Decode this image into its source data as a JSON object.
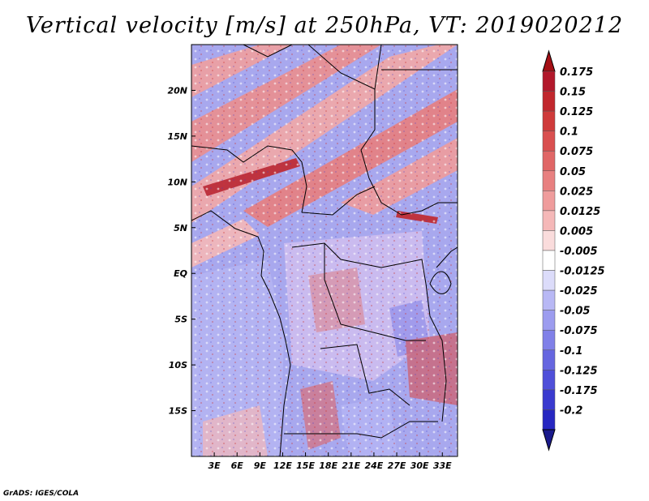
{
  "title": "Vertical velocity [m/s] at 250hPa, VT: 2019020212",
  "credit": "GrADS: IGES/COLA",
  "map": {
    "variable": "Vertical velocity",
    "units": "m/s",
    "level": "250hPa",
    "valid_time": "2019020212",
    "lon_range": [
      0,
      35
    ],
    "lat_range": [
      -20,
      25
    ],
    "lat_ticks": [
      {
        "value": 20,
        "label": "20N"
      },
      {
        "value": 15,
        "label": "15N"
      },
      {
        "value": 10,
        "label": "10N"
      },
      {
        "value": 5,
        "label": "5N"
      },
      {
        "value": 0,
        "label": "EQ"
      },
      {
        "value": -5,
        "label": "5S"
      },
      {
        "value": -10,
        "label": "10S"
      },
      {
        "value": -15,
        "label": "15S"
      }
    ],
    "lon_ticks": [
      {
        "value": 3,
        "label": "3E"
      },
      {
        "value": 6,
        "label": "6E"
      },
      {
        "value": 9,
        "label": "9E"
      },
      {
        "value": 12,
        "label": "12E"
      },
      {
        "value": 15,
        "label": "15E"
      },
      {
        "value": 18,
        "label": "18E"
      },
      {
        "value": 21,
        "label": "21E"
      },
      {
        "value": 24,
        "label": "24E"
      },
      {
        "value": 27,
        "label": "27E"
      },
      {
        "value": 30,
        "label": "30E"
      },
      {
        "value": 33,
        "label": "33E"
      }
    ]
  },
  "colorbar": {
    "labels": [
      "0.175",
      "0.15",
      "0.125",
      "0.1",
      "0.075",
      "0.05",
      "0.025",
      "0.0125",
      "0.005",
      "-0.005",
      "-0.0125",
      "-0.025",
      "-0.05",
      "-0.075",
      "-0.1",
      "-0.125",
      "-0.175",
      "-0.2"
    ],
    "colors": [
      "#b2182b",
      "#c1272d",
      "#cf3a3a",
      "#d94f4f",
      "#e06666",
      "#e88080",
      "#ef9c9c",
      "#f5b8b8",
      "#fadcdc",
      "#ffffff",
      "#dcdcfa",
      "#b8b8f5",
      "#9c9cef",
      "#8080e8",
      "#6666e0",
      "#4f4fd9",
      "#3a3acf",
      "#2727c1",
      "#18189f"
    ],
    "top_arrow_color": "#a50f15",
    "bottom_arrow_color": "#1a1a8c"
  }
}
